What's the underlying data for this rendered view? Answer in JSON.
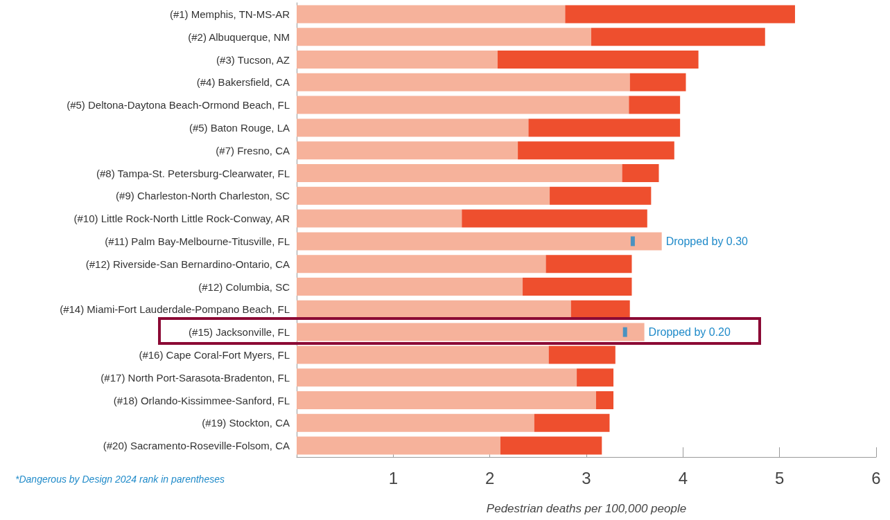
{
  "chart_data": {
    "type": "bar",
    "orientation": "horizontal",
    "stacked": true,
    "xlabel": "Pedestrian deaths per 100,000 people",
    "categories": [
      "(#1) Memphis, TN-MS-AR",
      "(#2) Albuquerque, NM",
      "(#3) Tucson, AZ",
      "(#4) Bakersfield, CA",
      "(#5) Deltona-Daytona Beach-Ormond Beach, FL",
      "(#5) Baton Rouge, LA",
      "(#7) Fresno, CA",
      "(#8) Tampa-St. Petersburg-Clearwater, FL",
      "(#9) Charleston-North Charleston, SC",
      "(#10) Little Rock-North Little Rock-Conway, AR",
      "(#11) Palm Bay-Melbourne-Titusville, FL",
      "(#12) Riverside-San Bernardino-Ontario, CA",
      "(#12) Columbia, SC",
      "(#14) Miami-Fort Lauderdale-Pompano Beach, FL",
      "(#15) Jacksonville, FL",
      "(#16) Cape Coral-Fort Myers, FL",
      "(#17) North Port-Sarasota-Bradenton, FL",
      "(#18) Orlando-Kissimmee-Sanford, FL",
      "(#19) Stockton, CA",
      "(#20) Sacramento-Roseville-Folsom, CA"
    ],
    "series": [
      {
        "color": "#f6b29b",
        "values": [
          2.78,
          3.05,
          2.08,
          3.45,
          3.44,
          2.4,
          2.29,
          3.37,
          2.62,
          1.71,
          3.78,
          2.58,
          2.34,
          2.84,
          3.6,
          2.61,
          2.9,
          3.1,
          2.46,
          2.11
        ]
      },
      {
        "color": "#ee4f2e",
        "values": [
          2.38,
          1.8,
          2.08,
          0.58,
          0.53,
          1.57,
          1.62,
          0.38,
          1.05,
          1.92,
          null,
          0.89,
          1.13,
          0.61,
          null,
          0.69,
          0.38,
          0.18,
          0.78,
          1.05
        ]
      },
      {
        "type": "scatter",
        "color": "#1f8ac9",
        "values": [
          null,
          null,
          null,
          null,
          null,
          null,
          null,
          null,
          null,
          null,
          3.48,
          null,
          null,
          null,
          3.4,
          null,
          null,
          null,
          null,
          null
        ]
      }
    ],
    "xlim": [
      0,
      6
    ],
    "xticks": [
      1,
      2,
      3,
      4,
      5,
      6
    ],
    "grid": false,
    "annotations": [
      {
        "text": "Dropped by 0.30",
        "x": 3.78,
        "y": "(#11) Palm Bay-Melbourne-Titusville, FL"
      },
      {
        "text": "Dropped by 0.20",
        "x": 3.6,
        "y": "(#15) Jacksonville, FL"
      },
      "*Dangerous by Design 2024 rank in parentheses"
    ]
  }
}
